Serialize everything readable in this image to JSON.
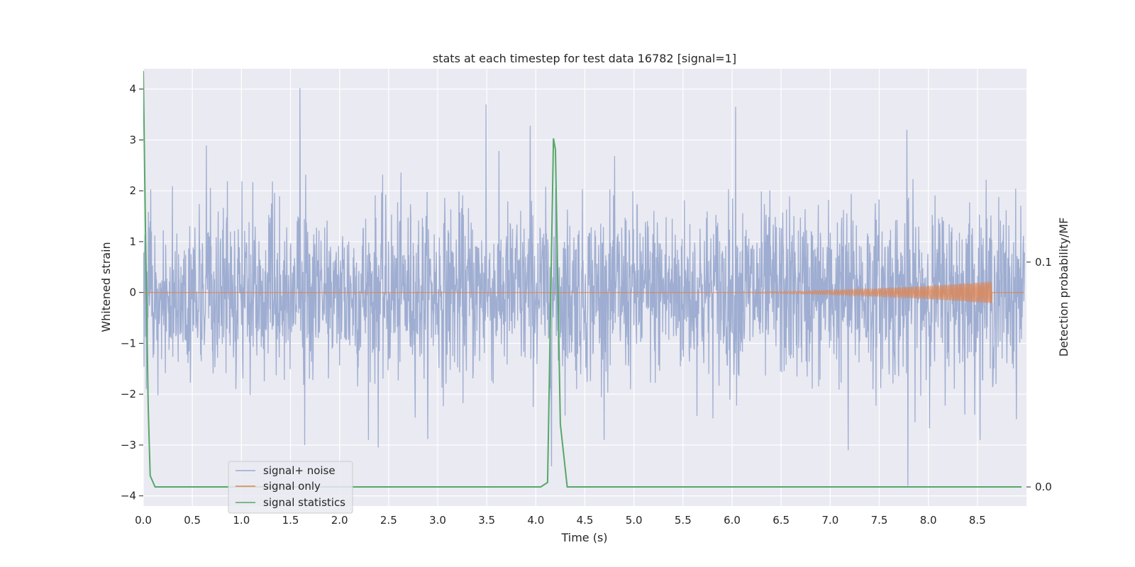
{
  "chart_data": {
    "type": "line",
    "title": "stats at each timestep for test data 16782 [signal=1]",
    "xlabel": "Time (s)",
    "ylabel": "Whitened strain",
    "y2label": "Detection probability/MF",
    "xlim": [
      0.0,
      9.0
    ],
    "ylim": [
      -4.2,
      4.4
    ],
    "y2lim": [
      -0.0085,
      0.186
    ],
    "xticks": [
      0.0,
      0.5,
      1.0,
      1.5,
      2.0,
      2.5,
      3.0,
      3.5,
      4.0,
      4.5,
      5.0,
      5.5,
      6.0,
      6.5,
      7.0,
      7.5,
      8.0,
      8.5
    ],
    "xtick_labels": [
      "0.0",
      "0.5",
      "1.0",
      "1.5",
      "2.0",
      "2.5",
      "3.0",
      "3.5",
      "4.0",
      "4.5",
      "5.0",
      "5.5",
      "6.0",
      "6.5",
      "7.0",
      "7.5",
      "8.0",
      "8.5"
    ],
    "yticks": [
      4,
      3,
      2,
      1,
      0,
      -1,
      -2,
      -3,
      -4
    ],
    "ytick_labels": [
      "4",
      "3",
      "2",
      "1",
      "0",
      "−1",
      "−2",
      "−3",
      "−4"
    ],
    "y2ticks": [
      0.1,
      0.0
    ],
    "y2tick_labels": [
      "0.1",
      "0.0"
    ],
    "grid": true,
    "legend_position": "lower-left",
    "series": [
      {
        "name": "signal+ noise",
        "axis": "left",
        "color": "#9aaacf",
        "noise_std": 0.85,
        "spikes": [
          {
            "x": 1.6,
            "y": 4.02
          },
          {
            "x": 3.5,
            "y": 3.7
          },
          {
            "x": 3.95,
            "y": 3.28
          },
          {
            "x": 6.05,
            "y": 3.65
          },
          {
            "x": 7.8,
            "y": 3.2
          },
          {
            "x": 4.17,
            "y": -3.42
          },
          {
            "x": 7.81,
            "y": -3.8
          },
          {
            "x": 1.65,
            "y": -3.0
          },
          {
            "x": 2.4,
            "y": -3.05
          },
          {
            "x": 7.2,
            "y": -3.1
          }
        ]
      },
      {
        "name": "signal only",
        "axis": "left",
        "color": "#dd8452",
        "chirp_start": 5.5,
        "chirp_peak": 8.65,
        "max_amplitude": 0.22
      },
      {
        "name": "signal statistics",
        "axis": "right",
        "color": "#55a868",
        "x": [
          0.0,
          0.02,
          0.05,
          0.07,
          0.12,
          4.05,
          4.12,
          4.18,
          4.2,
          4.25,
          4.32,
          8.95
        ],
        "y": [
          0.185,
          0.12,
          0.036,
          0.005,
          0.0,
          0.0,
          0.002,
          0.155,
          0.15,
          0.028,
          0.0,
          0.0
        ]
      }
    ]
  }
}
